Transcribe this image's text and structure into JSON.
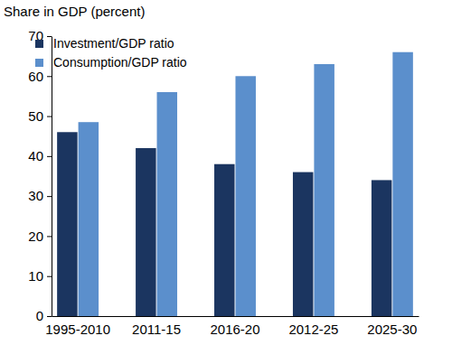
{
  "chart_data": {
    "type": "bar",
    "y_label": "Share in GDP (percent)",
    "categories": [
      "1995-2010",
      "2011-15",
      "2016-20",
      "2012-25",
      "2025-30"
    ],
    "series": [
      {
        "name": "Investment/GDP ratio",
        "color": "#1b3560",
        "values": [
          46,
          42,
          38,
          36,
          34
        ]
      },
      {
        "name": "Consumption/GDP ratio",
        "color": "#5b8fcc",
        "values": [
          48.5,
          56,
          60,
          63,
          66
        ]
      }
    ],
    "ylim": [
      0,
      70
    ],
    "yticks": [
      0,
      10,
      20,
      30,
      40,
      50,
      60,
      70
    ],
    "grid": false,
    "legend": "upper left"
  }
}
